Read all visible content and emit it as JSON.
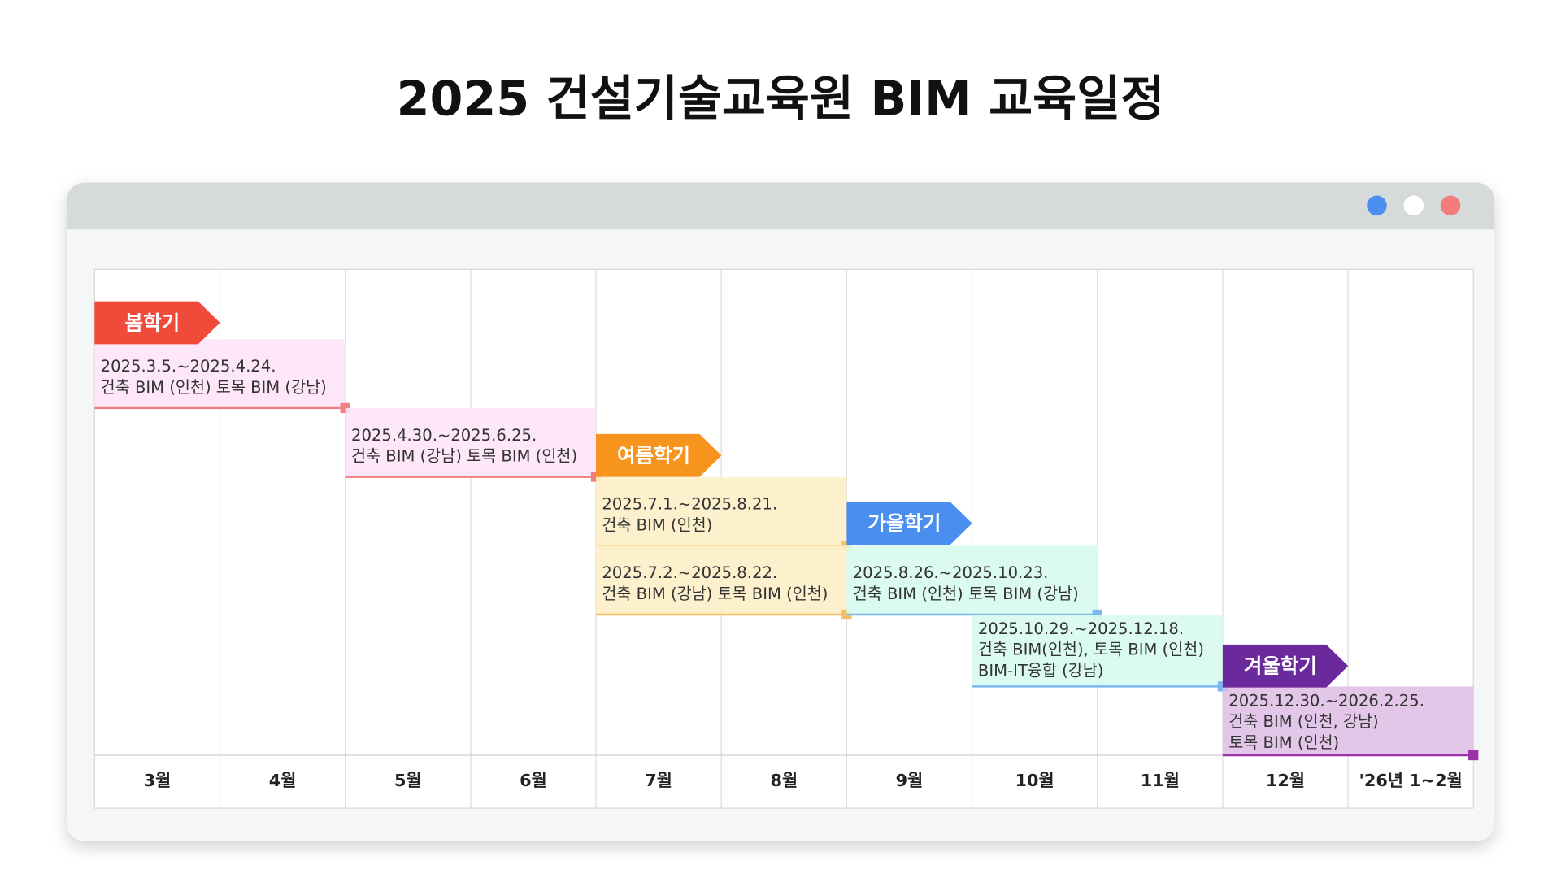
{
  "header": {
    "title": "2025 건설기술교육원 BIM 교육일정"
  },
  "months": [
    "3월",
    "4월",
    "5월",
    "6월",
    "7월",
    "8월",
    "9월",
    "10월",
    "11월",
    "12월",
    "'26년 1~2월"
  ],
  "terms": [
    {
      "label": "봄학기",
      "sessions": [
        {
          "dates": "2025.3.5.~2025.4.24.",
          "lines": [
            "건축 BIM (인천) 토목 BIM (강남)"
          ]
        },
        {
          "dates": "2025.4.30.~2025.6.25.",
          "lines": [
            "건축 BIM (강남) 토목 BIM (인천)"
          ]
        }
      ]
    },
    {
      "label": "여름학기",
      "sessions": [
        {
          "dates": "2025.7.1.~2025.8.21.",
          "lines": [
            "건축 BIM (인천)"
          ]
        },
        {
          "dates": "2025.7.2.~2025.8.22.",
          "lines": [
            "건축 BIM (강남) 토목 BIM (인천)"
          ]
        }
      ]
    },
    {
      "label": "가을학기",
      "sessions": [
        {
          "dates": "2025.8.26.~2025.10.23.",
          "lines": [
            "건축 BIM (인천) 토목 BIM (강남)"
          ]
        },
        {
          "dates": "2025.10.29.~2025.12.18.",
          "lines": [
            "건축 BIM(인천), 토목 BIM (인천)",
            "BIM-IT융합 (강남)"
          ]
        }
      ]
    },
    {
      "label": "겨울학기",
      "sessions": [
        {
          "dates": "2025.12.30.~2026.2.25.",
          "lines": [
            "건축 BIM (인천, 강남)",
            "토목 BIM (인천)"
          ]
        }
      ]
    }
  ]
}
